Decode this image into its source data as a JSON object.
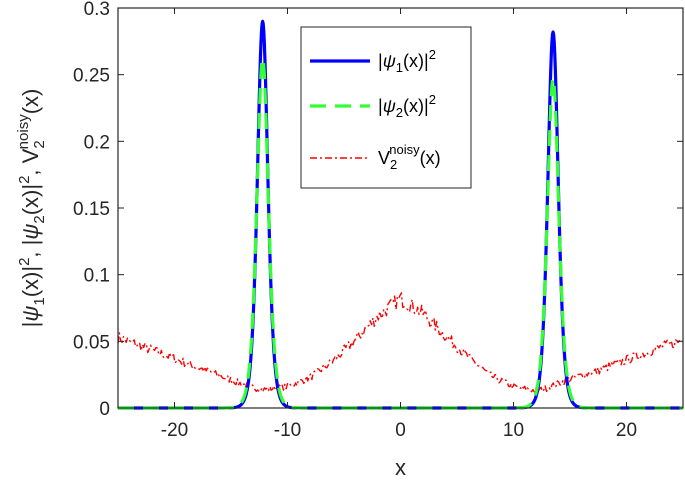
{
  "chart_data": {
    "type": "line",
    "xlabel": "x",
    "ylabel_parts": {
      "p1": "|",
      "psi1": "ψ",
      "sub1": "1",
      "p2": "(x)|",
      "sup1": "2",
      "sep1": ", |",
      "psi2": "ψ",
      "sub2": "2",
      "p3": "(x)|",
      "sup2": "2",
      "sep2": ", V",
      "sub3": "2",
      "sup3": "noisy",
      "p4": "(x)"
    },
    "xlim": [
      -25,
      25
    ],
    "ylim": [
      0,
      0.3
    ],
    "xticks": [
      -20,
      -10,
      0,
      10,
      20
    ],
    "xtick_labels": [
      "-20",
      "-10",
      "0",
      "10",
      "20"
    ],
    "yticks": [
      0,
      0.05,
      0.1,
      0.15,
      0.2,
      0.25,
      0.3
    ],
    "ytick_labels": [
      "0",
      "0.05",
      "0.1",
      "0.15",
      "0.2",
      "0.25",
      "0.3"
    ],
    "legend_location": "top-right",
    "series": [
      {
        "name": "psi1",
        "legend": {
          "bar1": "|",
          "psi": "ψ",
          "sub": "1",
          "paren": "(x)|",
          "sup": "2"
        },
        "color": "#0000ff",
        "style": "solid",
        "peaks": [
          {
            "center": -12.2,
            "height": 0.29,
            "width": 0.62
          },
          {
            "center": 13.5,
            "height": 0.282,
            "width": 0.62
          }
        ],
        "x": [
          -25,
          -16,
          -15,
          -14,
          -13.5,
          -13,
          -12.7,
          -12.4,
          -12.2,
          -12,
          -11.7,
          -11.4,
          -11,
          -10.5,
          -10,
          -9,
          -5,
          0,
          5,
          9,
          10,
          11,
          11.5,
          12,
          12.5,
          13,
          13.3,
          13.5,
          13.7,
          14,
          14.5,
          15,
          15.5,
          16,
          17,
          25
        ],
        "y": [
          0.0,
          0.0,
          0.0003,
          0.005,
          0.03,
          0.101,
          0.19,
          0.262,
          0.29,
          0.272,
          0.19,
          0.101,
          0.03,
          0.005,
          0.001,
          0.0005,
          0.0005,
          0.001,
          0.0005,
          0.0003,
          0.001,
          0.005,
          0.018,
          0.06,
          0.135,
          0.224,
          0.265,
          0.282,
          0.265,
          0.195,
          0.096,
          0.03,
          0.008,
          0.002,
          0.0002,
          0.0
        ]
      },
      {
        "name": "psi2",
        "legend": {
          "bar1": "|",
          "psi": "ψ",
          "sub": "2",
          "paren": "(x)|",
          "sup": "2"
        },
        "color": "#33ff33",
        "style": "dashed",
        "peaks": [
          {
            "center": -12.2,
            "height": 0.262,
            "width": 0.68
          },
          {
            "center": 13.5,
            "height": 0.247,
            "width": 0.68
          }
        ],
        "x": [
          -25,
          -16,
          -15,
          -14,
          -13.5,
          -13,
          -12.7,
          -12.4,
          -12.2,
          -12,
          -11.7,
          -11.4,
          -11,
          -10.5,
          -10,
          -9,
          -5,
          0,
          5,
          9,
          10,
          11,
          11.5,
          12,
          12.5,
          13,
          13.3,
          13.5,
          13.7,
          14,
          14.5,
          15,
          15.5,
          16,
          17,
          25
        ],
        "y": [
          0.0,
          0.0002,
          0.001,
          0.008,
          0.034,
          0.1,
          0.178,
          0.238,
          0.262,
          0.248,
          0.18,
          0.104,
          0.036,
          0.008,
          0.002,
          0.0005,
          0.0003,
          0.0005,
          0.0003,
          0.0005,
          0.002,
          0.008,
          0.022,
          0.065,
          0.13,
          0.202,
          0.235,
          0.247,
          0.235,
          0.182,
          0.096,
          0.036,
          0.011,
          0.003,
          0.0004,
          0.0
        ]
      },
      {
        "name": "V2noisy",
        "legend": {
          "v": "V",
          "sub": "2",
          "sup": "noisy",
          "paren": "(x)"
        },
        "color": "#ff0000",
        "style": "dashdot",
        "x": [
          -25,
          -22.5,
          -20,
          -17.5,
          -15,
          -13,
          -12,
          -10,
          -8,
          -6,
          -4,
          -2,
          0,
          2,
          4,
          6,
          8,
          10,
          12,
          13,
          15,
          17.5,
          20,
          22.5,
          25
        ],
        "y": [
          0.053,
          0.045,
          0.037,
          0.029,
          0.021,
          0.015,
          0.014,
          0.016,
          0.023,
          0.035,
          0.051,
          0.069,
          0.082,
          0.071,
          0.054,
          0.038,
          0.024,
          0.016,
          0.013,
          0.015,
          0.022,
          0.028,
          0.036,
          0.044,
          0.051
        ]
      }
    ]
  }
}
